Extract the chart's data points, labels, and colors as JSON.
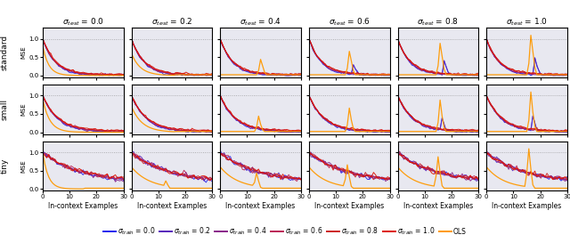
{
  "rows": [
    "standard",
    "small",
    "tiny"
  ],
  "cols": [
    "0.0",
    "0.2",
    "0.4",
    "0.6",
    "0.8",
    "1.0"
  ],
  "sigma_train_values": [
    0.0,
    0.2,
    0.4,
    0.6,
    0.8,
    1.0
  ],
  "sigma_train_colors": [
    "#2222ee",
    "#5522bb",
    "#882288",
    "#bb2255",
    "#cc2222",
    "#dd1100"
  ],
  "ols_color": "#ff9900",
  "n_points": 41,
  "xlim": [
    0,
    30
  ],
  "ylim": [
    -0.05,
    1.3
  ],
  "yticks": [
    0.0,
    0.5,
    1.0
  ],
  "xticks": [
    0,
    10,
    20,
    30
  ],
  "bg_color": "#e8e8f0",
  "xlabel": "In-context Examples",
  "ylabel": "MSE",
  "row_label_fontsize": 6.5,
  "col_title_fontsize": 6.5,
  "tick_fontsize": 5,
  "xlabel_fontsize": 5.5
}
